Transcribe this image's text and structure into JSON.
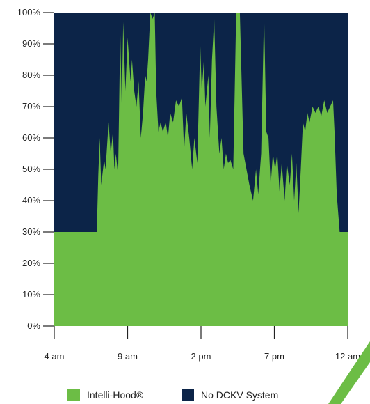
{
  "chart_data": {
    "type": "area",
    "stacked": true,
    "percent": true,
    "ylim": [
      0,
      100
    ],
    "yticks": [
      "0%",
      "10%",
      "20%",
      "30%",
      "40%",
      "50%",
      "60%",
      "70%",
      "80%",
      "90%",
      "100%"
    ],
    "xlim": [
      4,
      24
    ],
    "xticks": [
      {
        "x": 4,
        "label": "4 am"
      },
      {
        "x": 9,
        "label": "9 am"
      },
      {
        "x": 14,
        "label": "2 pm"
      },
      {
        "x": 19,
        "label": "7 pm"
      },
      {
        "x": 24,
        "label": "12 am"
      }
    ],
    "grid": false,
    "legend_position": "bottom",
    "series": [
      {
        "name": "Intelli-Hood®",
        "color": "#6cbd45",
        "points": [
          [
            4,
            30
          ],
          [
            6.8,
            30
          ],
          [
            6.9,
            30
          ],
          [
            7.0,
            48
          ],
          [
            7.1,
            60
          ],
          [
            7.2,
            45
          ],
          [
            7.4,
            53
          ],
          [
            7.5,
            50
          ],
          [
            7.7,
            65
          ],
          [
            7.85,
            55
          ],
          [
            8.0,
            62
          ],
          [
            8.1,
            50
          ],
          [
            8.2,
            55
          ],
          [
            8.35,
            48
          ],
          [
            8.5,
            94
          ],
          [
            8.6,
            70
          ],
          [
            8.7,
            97
          ],
          [
            8.85,
            75
          ],
          [
            9.0,
            92
          ],
          [
            9.2,
            78
          ],
          [
            9.3,
            85
          ],
          [
            9.45,
            75
          ],
          [
            9.6,
            70
          ],
          [
            9.75,
            78
          ],
          [
            9.9,
            60
          ],
          [
            10.05,
            68
          ],
          [
            10.2,
            80
          ],
          [
            10.3,
            78
          ],
          [
            10.4,
            85
          ],
          [
            10.55,
            100
          ],
          [
            10.7,
            98
          ],
          [
            10.85,
            100
          ],
          [
            10.95,
            75
          ],
          [
            11.1,
            62
          ],
          [
            11.25,
            65
          ],
          [
            11.4,
            62
          ],
          [
            11.6,
            65
          ],
          [
            11.75,
            60
          ],
          [
            11.9,
            68
          ],
          [
            12.1,
            65
          ],
          [
            12.3,
            72
          ],
          [
            12.5,
            70
          ],
          [
            12.7,
            73
          ],
          [
            12.85,
            56
          ],
          [
            13.0,
            68
          ],
          [
            13.2,
            60
          ],
          [
            13.4,
            50
          ],
          [
            13.55,
            60
          ],
          [
            13.75,
            52
          ],
          [
            13.95,
            90
          ],
          [
            14.05,
            75
          ],
          [
            14.2,
            85
          ],
          [
            14.3,
            70
          ],
          [
            14.5,
            80
          ],
          [
            14.6,
            60
          ],
          [
            14.75,
            85
          ],
          [
            14.9,
            98
          ],
          [
            15.05,
            70
          ],
          [
            15.25,
            55
          ],
          [
            15.4,
            60
          ],
          [
            15.55,
            50
          ],
          [
            15.7,
            55
          ],
          [
            15.85,
            52
          ],
          [
            16.0,
            53
          ],
          [
            16.2,
            50
          ],
          [
            16.4,
            100
          ],
          [
            16.65,
            100
          ],
          [
            16.9,
            55
          ],
          [
            17.1,
            50
          ],
          [
            17.3,
            45
          ],
          [
            17.55,
            40
          ],
          [
            17.75,
            50
          ],
          [
            17.9,
            42
          ],
          [
            18.1,
            55
          ],
          [
            18.3,
            100
          ],
          [
            18.45,
            62
          ],
          [
            18.6,
            60
          ],
          [
            18.75,
            45
          ],
          [
            18.9,
            55
          ],
          [
            19.05,
            50
          ],
          [
            19.2,
            55
          ],
          [
            19.35,
            43
          ],
          [
            19.5,
            52
          ],
          [
            19.7,
            40
          ],
          [
            19.85,
            52
          ],
          [
            20.05,
            45
          ],
          [
            20.2,
            55
          ],
          [
            20.35,
            40
          ],
          [
            20.5,
            52
          ],
          [
            20.65,
            36
          ],
          [
            20.8,
            50
          ],
          [
            20.95,
            65
          ],
          [
            21.1,
            62
          ],
          [
            21.25,
            68
          ],
          [
            21.4,
            65
          ],
          [
            21.6,
            70
          ],
          [
            21.8,
            68
          ],
          [
            22.0,
            70
          ],
          [
            22.2,
            67
          ],
          [
            22.4,
            72
          ],
          [
            22.6,
            68
          ],
          [
            22.8,
            70
          ],
          [
            23.0,
            72
          ],
          [
            23.1,
            62
          ],
          [
            23.25,
            42
          ],
          [
            23.45,
            30
          ],
          [
            24,
            30
          ]
        ]
      },
      {
        "name": "No DCKV System",
        "color": "#0c2448",
        "values": "remainder to 100%"
      }
    ]
  }
}
